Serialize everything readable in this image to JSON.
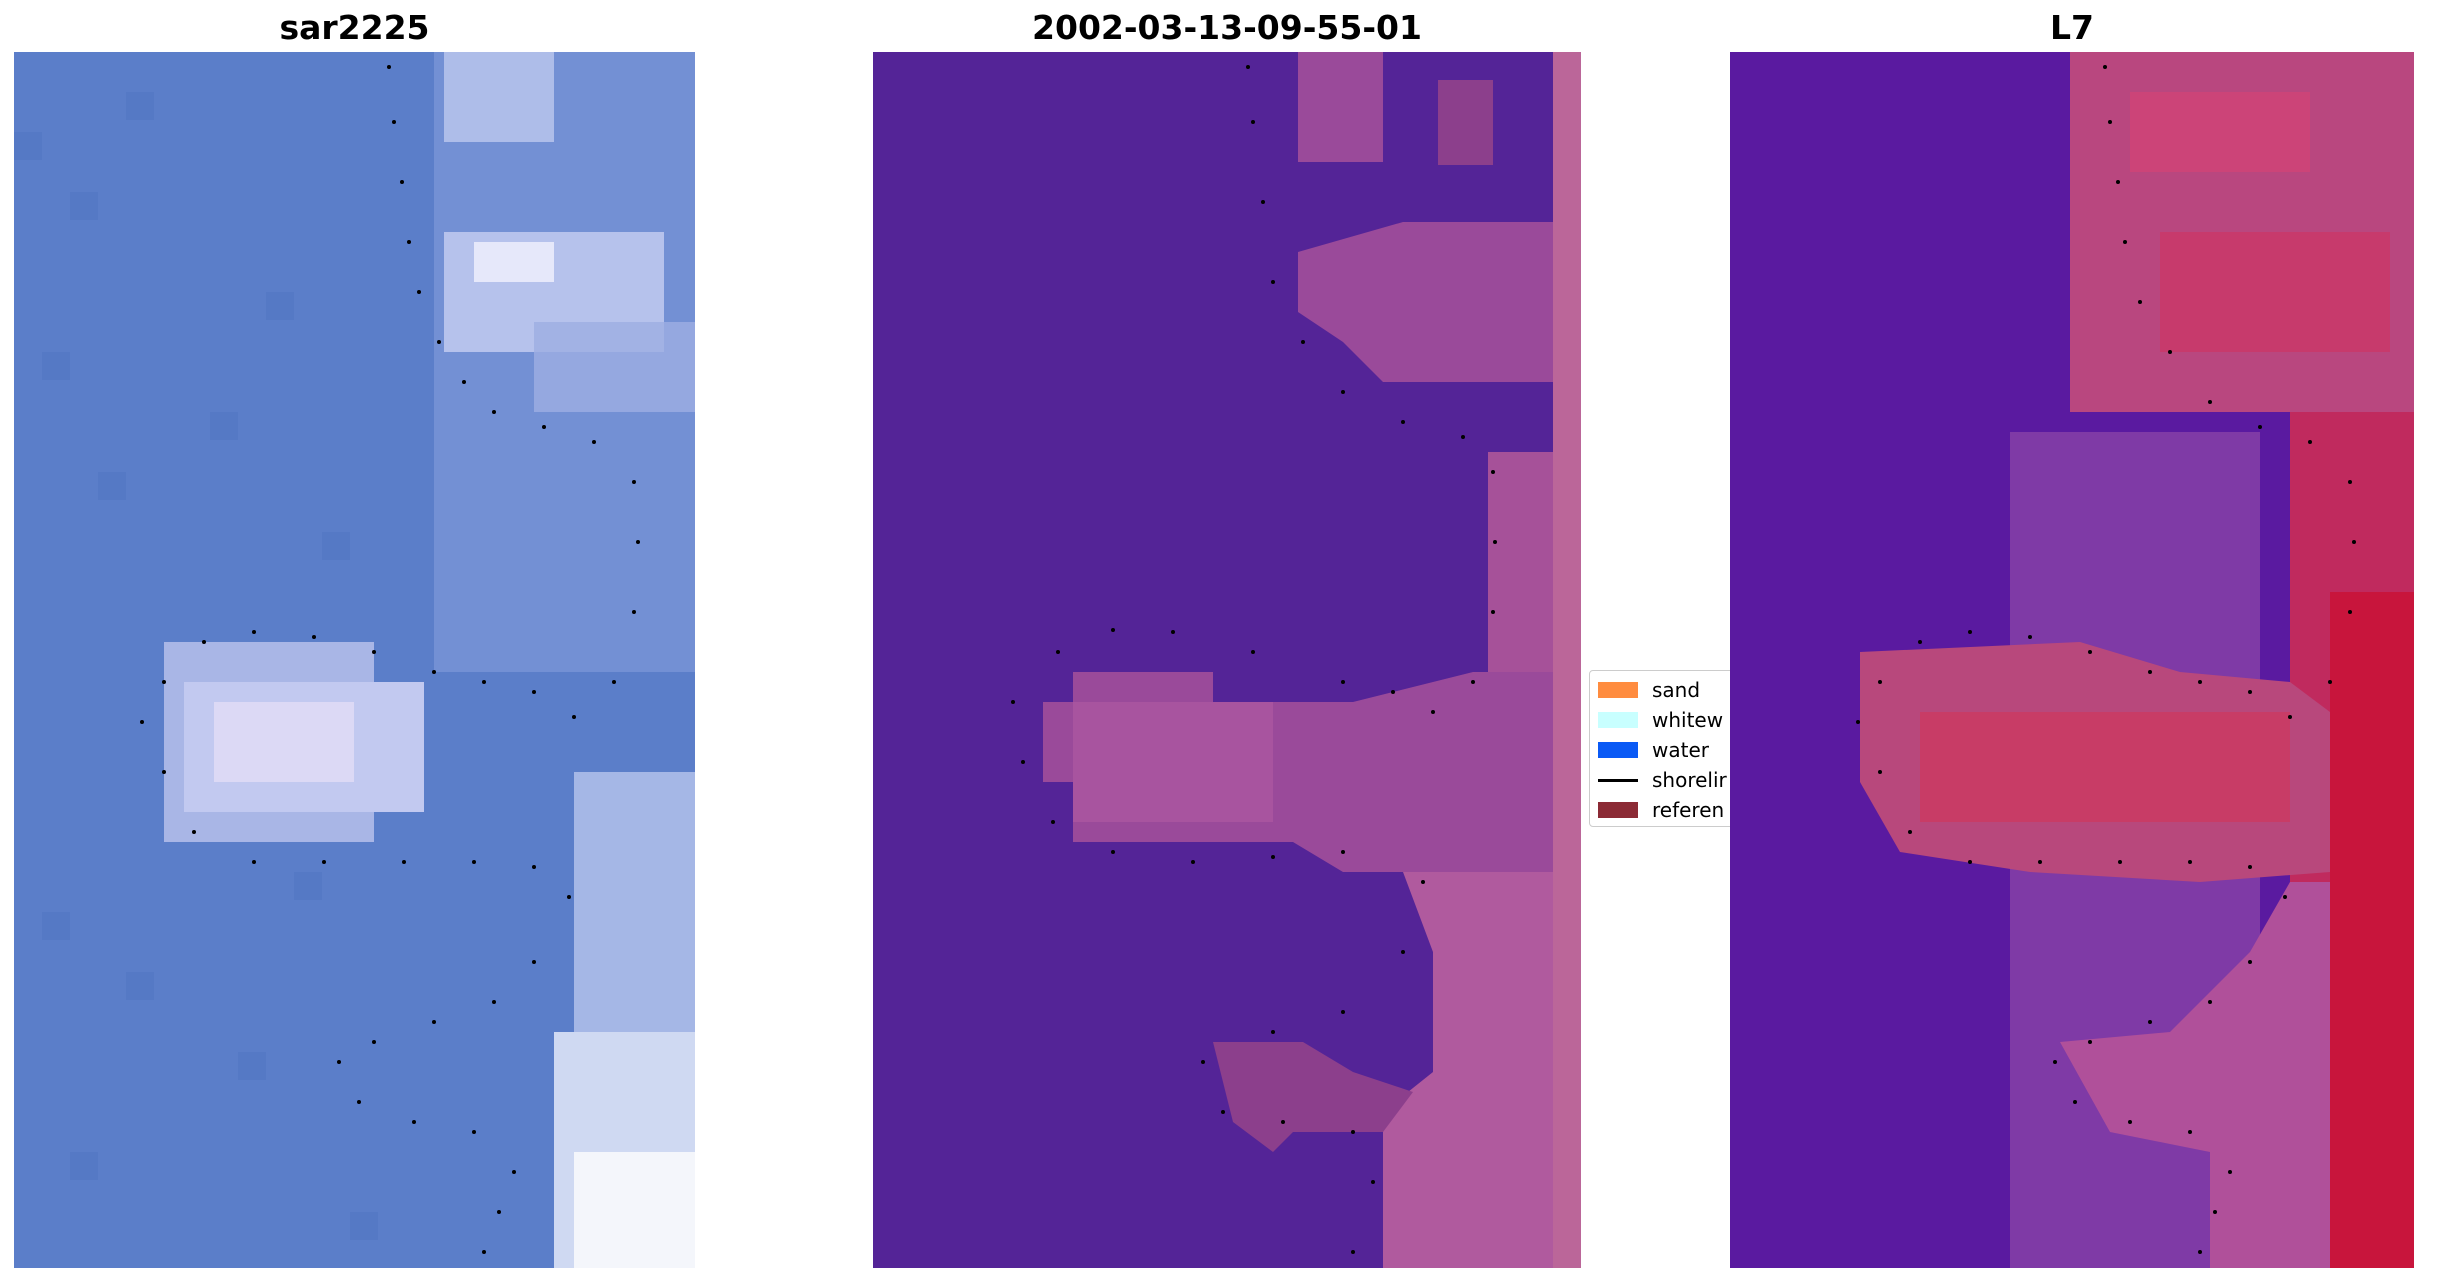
{
  "panels": [
    {
      "title": "sar2225",
      "image": "rgb-satellite-tile",
      "colors": {
        "base": "#5b7ec9",
        "light": "#c9d4f4",
        "bright": "#f4f2fb"
      }
    },
    {
      "title": "2002-03-13-09-55-01",
      "image": "classified-tile",
      "colors": {
        "water": "#542497",
        "land": "#9a4a9a",
        "edge": "#bb6699"
      }
    },
    {
      "title": "L7",
      "image": "index-tile",
      "colors": {
        "water": "#5a1aa0",
        "mid": "#a04a9e",
        "high": "#c8153c"
      }
    }
  ],
  "legend": {
    "items": [
      {
        "label": "sand",
        "color": "#ff8c3f",
        "kind": "patch"
      },
      {
        "label": "whitew",
        "color": "#c8ffff",
        "kind": "patch"
      },
      {
        "label": "water",
        "color": "#0a5af5",
        "kind": "patch"
      },
      {
        "label": "shorelir",
        "color": "#000000",
        "kind": "line"
      },
      {
        "label": "referen",
        "color": "#8b2a35",
        "kind": "patch"
      }
    ]
  }
}
